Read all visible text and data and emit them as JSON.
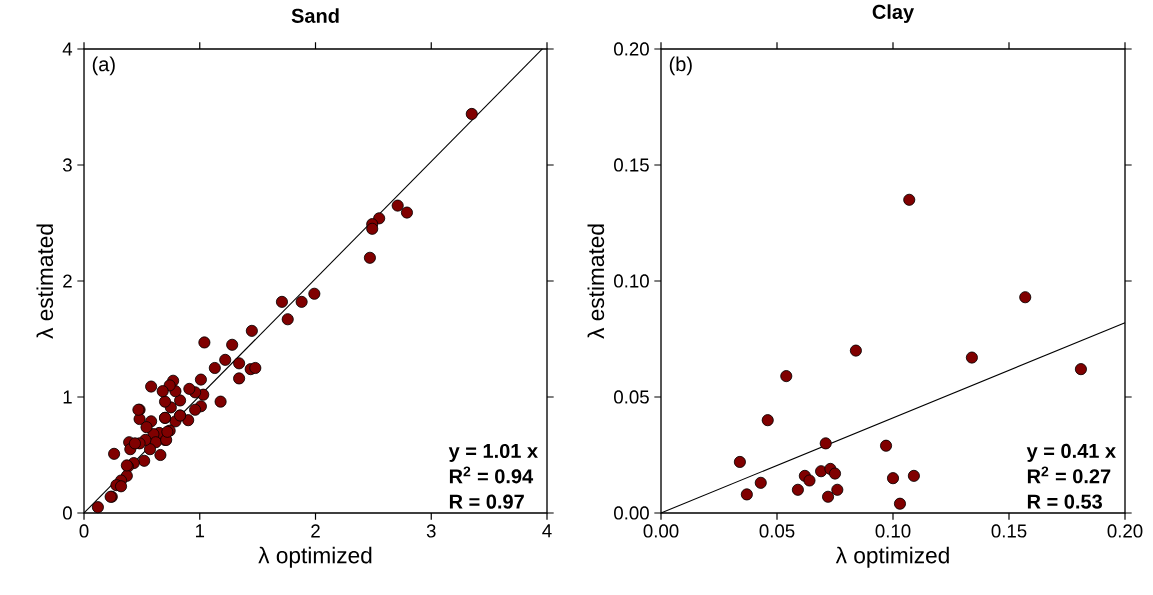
{
  "chart_data": [
    {
      "type": "scatter",
      "title": "Sand",
      "xlabel": "λ optimized",
      "ylabel": "λ estimated",
      "xlim": [
        0,
        4
      ],
      "ylim": [
        0,
        4
      ],
      "xticks": [
        0,
        1,
        2,
        3,
        4
      ],
      "yticks": [
        0,
        1,
        2,
        3,
        4
      ],
      "series": [
        {
          "color": "#800000",
          "marker": "circle",
          "x": [
            3.35,
            2.71,
            2.79,
            2.55,
            2.49,
            2.49,
            2.47,
            1.99,
            1.88,
            1.71,
            1.76,
            1.45,
            1.04,
            1.28,
            1.22,
            1.34,
            1.13,
            1.44,
            1.48,
            1.34,
            1.18,
            1.01,
            1.03,
            1.01,
            0.96,
            0.96,
            0.9,
            0.91,
            0.83,
            0.83,
            0.79,
            0.79,
            0.77,
            0.74,
            0.75,
            0.7,
            0.7,
            0.68,
            0.74,
            0.7,
            0.65,
            0.6,
            0.58,
            0.58,
            0.48,
            0.48,
            0.54,
            0.66,
            0.62,
            0.57,
            0.53,
            0.48,
            0.39,
            0.4,
            0.26,
            0.52,
            0.43,
            0.38,
            0.37,
            0.32,
            0.28,
            0.24,
            0.12,
            0.44,
            0.37,
            0.23,
            0.32,
            0.71,
            0.72,
            0.83,
            0.7,
            0.47
          ],
          "values": [
            3.44,
            2.65,
            2.59,
            2.54,
            2.49,
            2.45,
            2.2,
            1.89,
            1.82,
            1.82,
            1.67,
            1.57,
            1.47,
            1.45,
            1.32,
            1.29,
            1.25,
            1.24,
            1.25,
            1.16,
            0.96,
            1.15,
            1.02,
            0.92,
            1.04,
            0.89,
            0.8,
            1.07,
            0.97,
            0.84,
            1.05,
            0.79,
            1.14,
            1.1,
            0.91,
            0.96,
            0.82,
            1.05,
            0.71,
            0.63,
            0.69,
            0.68,
            1.09,
            0.79,
            0.89,
            0.81,
            0.74,
            0.5,
            0.61,
            0.55,
            0.63,
            0.6,
            0.61,
            0.55,
            0.51,
            0.45,
            0.43,
            0.4,
            0.32,
            0.28,
            0.24,
            0.14,
            0.05,
            0.6,
            0.41,
            0.14,
            0.23,
            0.63,
            0.7,
            0.84,
            0.82,
            0.89
          ]
        },
        {
          "type": "line",
          "color": "#000000",
          "marker": "none",
          "x": [
            0,
            3.96
          ],
          "values": [
            0,
            4.0
          ]
        }
      ],
      "annotations": [
        "(a)",
        "y = 1.01 x",
        "R$^{2}$ = 0.94",
        "R = 0.97"
      ]
    },
    {
      "type": "scatter",
      "title": "Clay",
      "xlabel": "λ optimized",
      "ylabel": "λ estimated",
      "xlim": [
        0,
        0.2
      ],
      "ylim": [
        0,
        0.2
      ],
      "xticks": [
        {
          "value": 0,
          "label": "0.00"
        },
        {
          "value": 0.05,
          "label": "0.05"
        },
        {
          "value": 0.1,
          "label": "0.10"
        },
        {
          "value": 0.15,
          "label": "0.15"
        },
        {
          "value": 0.2,
          "label": "0.20"
        }
      ],
      "yticks": [
        {
          "value": 0,
          "label": "0.00"
        },
        {
          "value": 0.05,
          "label": "0.05"
        },
        {
          "value": 0.1,
          "label": "0.10"
        },
        {
          "value": 0.15,
          "label": "0.15"
        },
        {
          "value": 0.2,
          "label": "0.20"
        }
      ],
      "series": [
        {
          "color": "#800000",
          "marker": "circle",
          "x": [
            0.034,
            0.037,
            0.043,
            0.046,
            0.054,
            0.059,
            0.062,
            0.064,
            0.069,
            0.071,
            0.072,
            0.073,
            0.075,
            0.076,
            0.084,
            0.097,
            0.1,
            0.103,
            0.107,
            0.109,
            0.134,
            0.157,
            0.181
          ],
          "values": [
            0.022,
            0.008,
            0.013,
            0.04,
            0.059,
            0.01,
            0.016,
            0.014,
            0.018,
            0.03,
            0.007,
            0.019,
            0.017,
            0.01,
            0.07,
            0.029,
            0.015,
            0.004,
            0.135,
            0.016,
            0.067,
            0.093,
            0.062
          ]
        },
        {
          "type": "line",
          "color": "#000000",
          "marker": "none",
          "x": [
            0,
            0.2
          ],
          "values": [
            0,
            0.082
          ]
        }
      ],
      "annotations": [
        "(b)",
        "y = 0.41 x",
        "R$^{2}$ = 0.27",
        "R = 0.53"
      ]
    }
  ]
}
